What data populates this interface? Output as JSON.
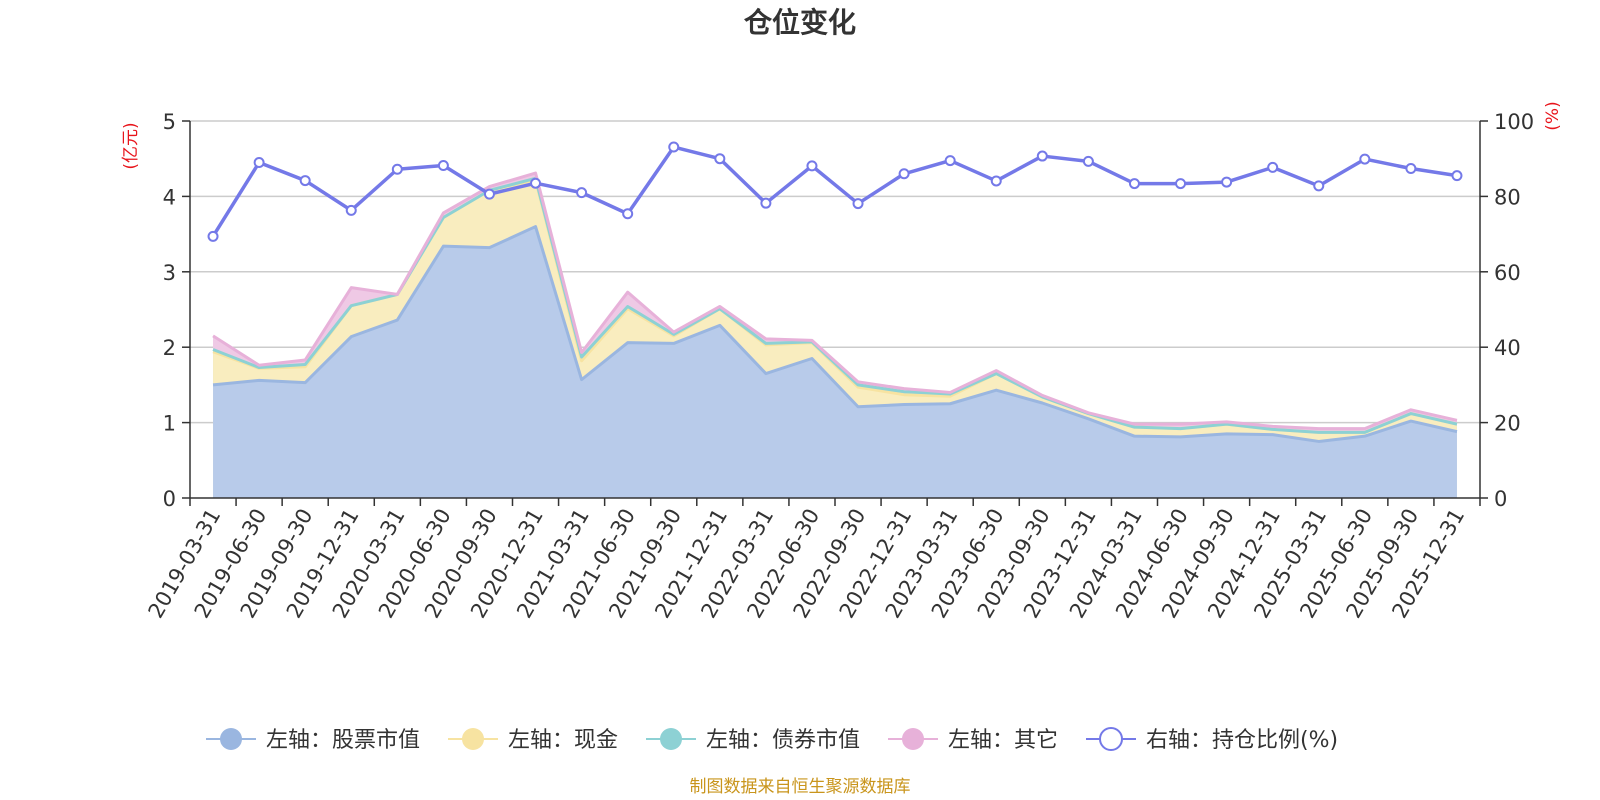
{
  "chart_data": {
    "type": "area",
    "title": "仓位变化",
    "left_axis_unit": "(亿元)",
    "right_axis_unit": "(%)",
    "left_ylim": [
      0,
      5
    ],
    "left_yticks": [
      "0",
      "1",
      "2",
      "3",
      "4",
      "5"
    ],
    "right_ylim": [
      0,
      100
    ],
    "right_yticks": [
      "0",
      "20",
      "40",
      "60",
      "80",
      "100"
    ],
    "categories": [
      "2019-03-31",
      "2019-06-30",
      "2019-09-30",
      "2019-12-31",
      "2020-03-31",
      "2020-06-30",
      "2020-09-30",
      "2020-12-31",
      "2021-03-31",
      "2021-06-30",
      "2021-09-30",
      "2021-12-31",
      "2022-03-31",
      "2022-06-30",
      "2022-09-30",
      "2022-12-31",
      "2023-03-31",
      "2023-06-30",
      "2023-09-30",
      "2023-12-31",
      "2024-03-31",
      "2024-06-30",
      "2024-09-30",
      "2024-12-31",
      "2025-03-31",
      "2025-06-30",
      "2025-09-30",
      "2025-12-31"
    ],
    "series": [
      {
        "name": "左轴：股票市值",
        "axis": "left",
        "color": "#9ab6e0",
        "fill": "#b8cbea",
        "values": [
          1.5,
          1.56,
          1.53,
          2.14,
          2.36,
          3.34,
          3.32,
          3.6,
          1.57,
          2.06,
          2.05,
          2.29,
          1.65,
          1.85,
          1.21,
          1.24,
          1.25,
          1.43,
          1.26,
          1.05,
          0.82,
          0.81,
          0.85,
          0.84,
          0.75,
          0.82,
          1.02,
          0.88
        ]
      },
      {
        "name": "左轴：现金",
        "axis": "left",
        "color": "#f7e3a1",
        "fill": "#f9edbf",
        "values": [
          0.44,
          0.16,
          0.21,
          0.41,
          0.34,
          0.38,
          0.76,
          0.62,
          0.25,
          0.45,
          0.1,
          0.22,
          0.38,
          0.21,
          0.26,
          0.13,
          0.1,
          0.22,
          0.08,
          0.07,
          0.12,
          0.11,
          0.13,
          0.07,
          0.12,
          0.05,
          0.1,
          0.1
        ]
      },
      {
        "name": "左轴：债券市值",
        "axis": "left",
        "color": "#8dd1d4",
        "fill": "#a9dfe0",
        "values": [
          0.03,
          0.01,
          0.03,
          0.0,
          0.0,
          0.0,
          0.0,
          0.02,
          0.05,
          0.03,
          0.02,
          0.0,
          0.02,
          0.01,
          0.03,
          0.04,
          0.03,
          0.0,
          0.0,
          0.0,
          0.0,
          0.0,
          0.0,
          0.0,
          0.0,
          0.0,
          0.0,
          0.0
        ]
      },
      {
        "name": "左轴：其它",
        "axis": "left",
        "color": "#e7b1d9",
        "fill": "#efc9e5",
        "values": [
          0.18,
          0.03,
          0.06,
          0.24,
          0.0,
          0.06,
          0.05,
          0.07,
          0.06,
          0.19,
          0.03,
          0.03,
          0.06,
          0.02,
          0.04,
          0.04,
          0.02,
          0.04,
          0.02,
          0.01,
          0.04,
          0.06,
          0.03,
          0.04,
          0.05,
          0.05,
          0.05,
          0.05
        ]
      },
      {
        "name": "右轴：持仓比例(%)",
        "axis": "right",
        "color": "#7479e8",
        "values": [
          69.4,
          89.0,
          84.2,
          76.3,
          87.2,
          88.2,
          80.6,
          83.5,
          81.0,
          75.4,
          93.1,
          90.0,
          78.2,
          88.1,
          78.1,
          86.0,
          89.5,
          84.1,
          90.7,
          89.3,
          83.4,
          83.4,
          83.8,
          87.7,
          82.8,
          89.9,
          87.4,
          85.5
        ]
      }
    ],
    "legend_position": "bottom"
  },
  "source_note": "制图数据来自恒生聚源数据库"
}
